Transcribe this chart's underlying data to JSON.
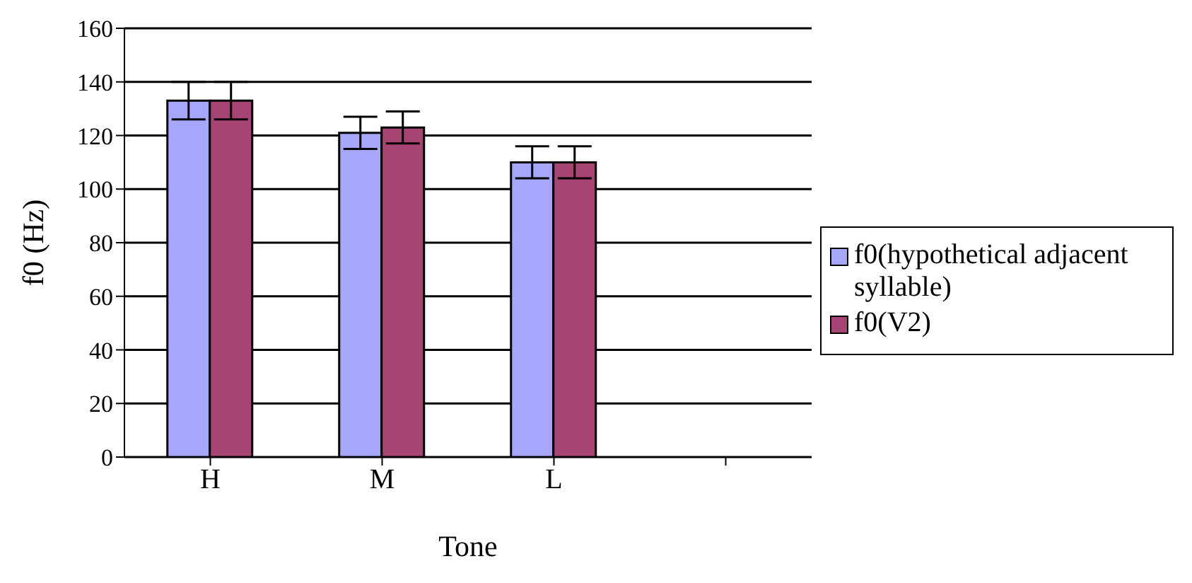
{
  "chart_data": {
    "type": "bar",
    "xlabel": "Tone",
    "ylabel": "f0 (Hz)",
    "categories": [
      "H",
      "M",
      "L",
      null
    ],
    "series": [
      {
        "name": "f0(hypothetical adjacent syllable)",
        "color": "#a6a6fa",
        "values": [
          133,
          121,
          110,
          null
        ],
        "errors": [
          7,
          6,
          6,
          null
        ]
      },
      {
        "name": "f0(V2)",
        "color": "#a64573",
        "values": [
          133,
          123,
          110,
          null
        ],
        "errors": [
          7,
          6,
          6,
          null
        ]
      }
    ],
    "ylim": [
      0,
      160
    ],
    "yticks": [
      0,
      20,
      40,
      60,
      80,
      100,
      120,
      140,
      160
    ],
    "grid": "y",
    "legend": "right"
  }
}
